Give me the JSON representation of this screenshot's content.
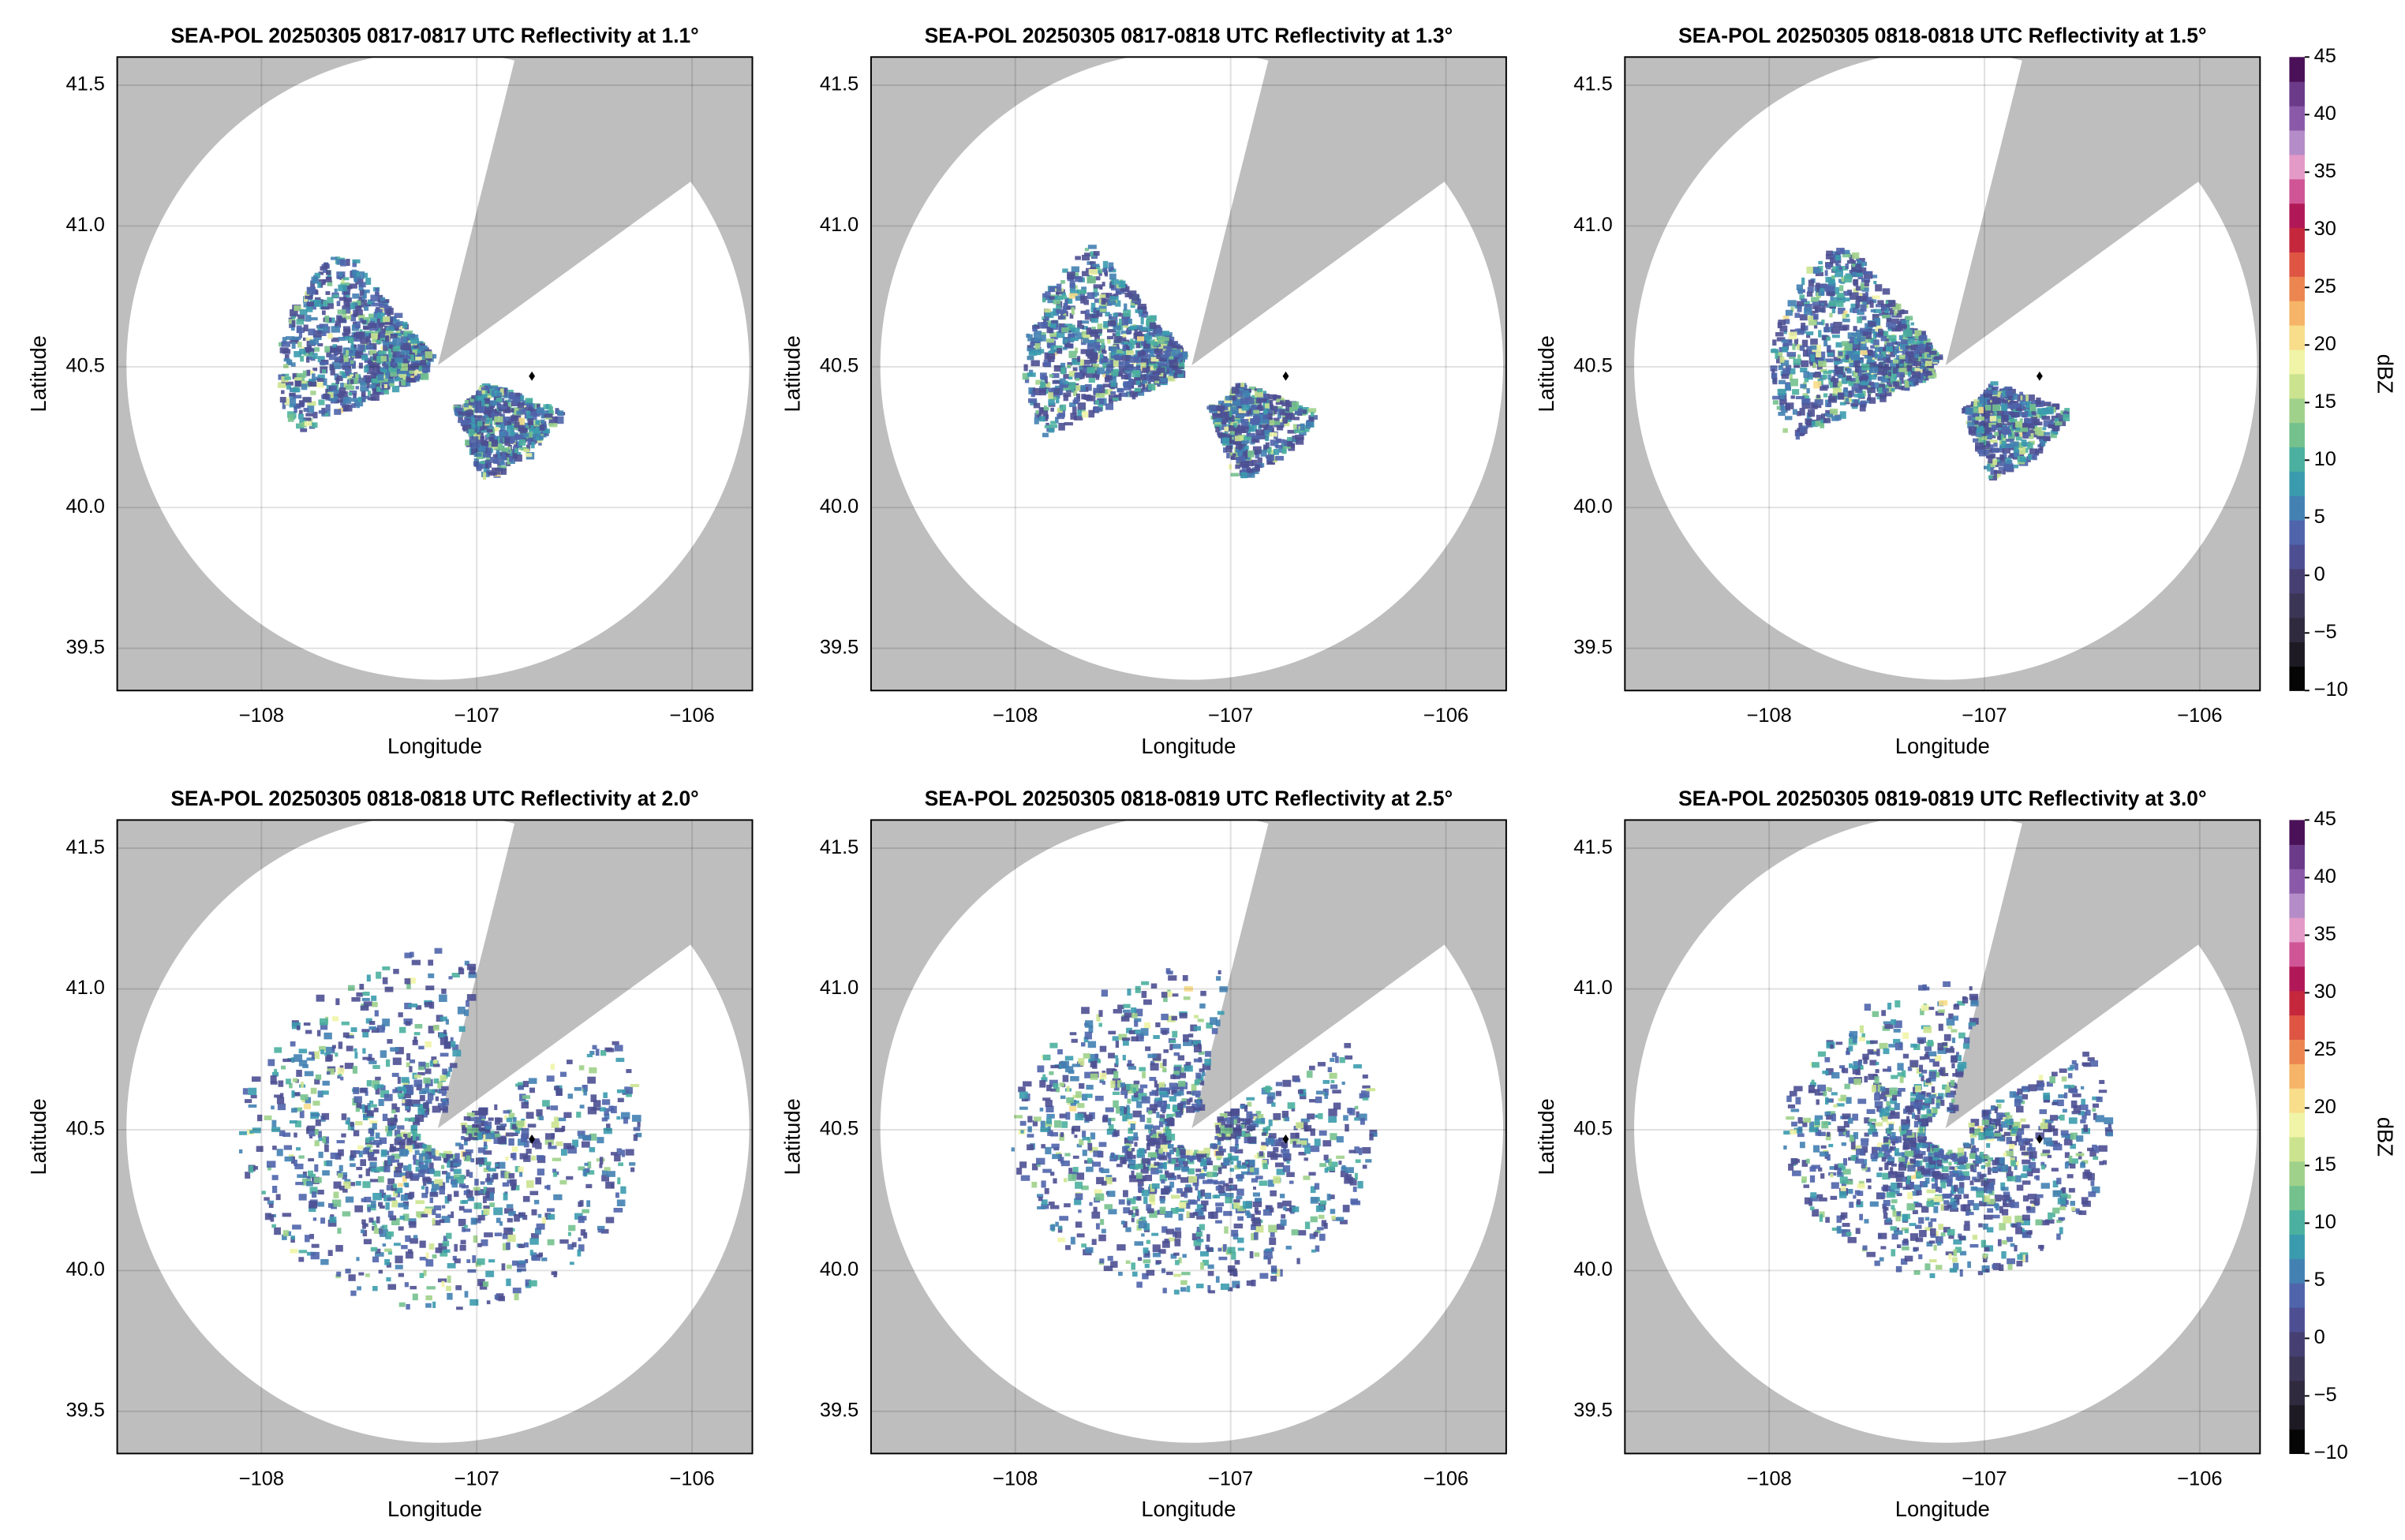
{
  "chart_data": [
    {
      "type": "radar",
      "title": "SEA-POL 20250305 0817-0817 UTC Reflectivity at 1.1°",
      "xlabel": "Longitude",
      "ylabel": "Latitude",
      "xlim": [
        -108.67,
        -105.72
      ],
      "ylim": [
        39.35,
        41.6
      ],
      "xticks": [
        {
          "value": -108,
          "label": "−108"
        },
        {
          "value": -107,
          "label": "−107"
        },
        {
          "value": -106,
          "label": "−106"
        }
      ],
      "yticks": [
        39.5,
        {
          "value": 40.0,
          "label": "40.0"
        },
        40.5,
        {
          "value": 41.0,
          "label": "41.0"
        },
        41.5
      ],
      "grid": true
    },
    {
      "type": "radar",
      "title": "SEA-POL 20250305 0817-0818 UTC Reflectivity at 1.3°",
      "xlabel": "Longitude",
      "ylabel": "Latitude",
      "xlim": [
        -108.67,
        -105.72
      ],
      "ylim": [
        39.35,
        41.6
      ],
      "xticks": [
        {
          "value": -108,
          "label": "−108"
        },
        {
          "value": -107,
          "label": "−107"
        },
        {
          "value": -106,
          "label": "−106"
        }
      ],
      "yticks": [
        39.5,
        {
          "value": 40.0,
          "label": "40.0"
        },
        40.5,
        {
          "value": 41.0,
          "label": "41.0"
        },
        41.5
      ],
      "grid": true
    },
    {
      "type": "radar",
      "title": "SEA-POL 20250305 0818-0818 UTC Reflectivity at 1.5°",
      "xlabel": "Longitude",
      "ylabel": "Latitude",
      "xlim": [
        -108.67,
        -105.72
      ],
      "ylim": [
        39.35,
        41.6
      ],
      "xticks": [
        {
          "value": -108,
          "label": "−108"
        },
        {
          "value": -107,
          "label": "−107"
        },
        {
          "value": -106,
          "label": "−106"
        }
      ],
      "yticks": [
        39.5,
        {
          "value": 40.0,
          "label": "40.0"
        },
        40.5,
        {
          "value": 41.0,
          "label": "41.0"
        },
        41.5
      ],
      "grid": true
    },
    {
      "type": "radar",
      "title": "SEA-POL 20250305 0818-0818 UTC Reflectivity at 2.0°",
      "xlabel": "Longitude",
      "ylabel": "Latitude",
      "xlim": [
        -108.67,
        -105.72
      ],
      "ylim": [
        39.35,
        41.6
      ],
      "xticks": [
        {
          "value": -108,
          "label": "−108"
        },
        {
          "value": -107,
          "label": "−107"
        },
        {
          "value": -106,
          "label": "−106"
        }
      ],
      "yticks": [
        39.5,
        {
          "value": 40.0,
          "label": "40.0"
        },
        40.5,
        {
          "value": 41.0,
          "label": "41.0"
        },
        41.5
      ],
      "grid": true
    },
    {
      "type": "radar",
      "title": "SEA-POL 20250305 0818-0819 UTC Reflectivity at 2.5°",
      "xlabel": "Longitude",
      "ylabel": "Latitude",
      "xlim": [
        -108.67,
        -105.72
      ],
      "ylim": [
        39.35,
        41.6
      ],
      "xticks": [
        {
          "value": -108,
          "label": "−108"
        },
        {
          "value": -107,
          "label": "−107"
        },
        {
          "value": -106,
          "label": "−106"
        }
      ],
      "yticks": [
        39.5,
        {
          "value": 40.0,
          "label": "40.0"
        },
        40.5,
        {
          "value": 41.0,
          "label": "41.0"
        },
        41.5
      ],
      "grid": true
    },
    {
      "type": "radar",
      "title": "SEA-POL 20250305 0819-0819 UTC Reflectivity at 3.0°",
      "xlabel": "Longitude",
      "ylabel": "Latitude",
      "xlim": [
        -108.67,
        -105.72
      ],
      "ylim": [
        39.35,
        41.6
      ],
      "xticks": [
        {
          "value": -108,
          "label": "−108"
        },
        {
          "value": -107,
          "label": "−107"
        },
        {
          "value": -106,
          "label": "−106"
        }
      ],
      "yticks": [
        39.5,
        {
          "value": 40.0,
          "label": "40.0"
        },
        40.5,
        {
          "value": 41.0,
          "label": "41.0"
        },
        41.5
      ],
      "grid": true
    }
  ],
  "colorbar": {
    "label": "dBZ",
    "lim": [
      -10,
      45
    ],
    "ticks": [
      {
        "value": -10,
        "label": "−10"
      },
      {
        "value": -5,
        "label": "−5"
      },
      0,
      5,
      10,
      15,
      20,
      25,
      30,
      35,
      40,
      45
    ],
    "colors": [
      "#050505",
      "#1d1a24",
      "#2f2a3d",
      "#3c3656",
      "#463f72",
      "#4d4f92",
      "#4f64ab",
      "#4381b2",
      "#3b9bae",
      "#4bb09f",
      "#74c18e",
      "#a0d18a",
      "#cbe38f",
      "#f0f4a6",
      "#f8dd8a",
      "#f5b467",
      "#ec8650",
      "#de5543",
      "#c5273d",
      "#b11857",
      "#d05596",
      "#e39ac7",
      "#b48cc8",
      "#8a5aa8",
      "#6b3a88",
      "#4a1058"
    ]
  }
}
